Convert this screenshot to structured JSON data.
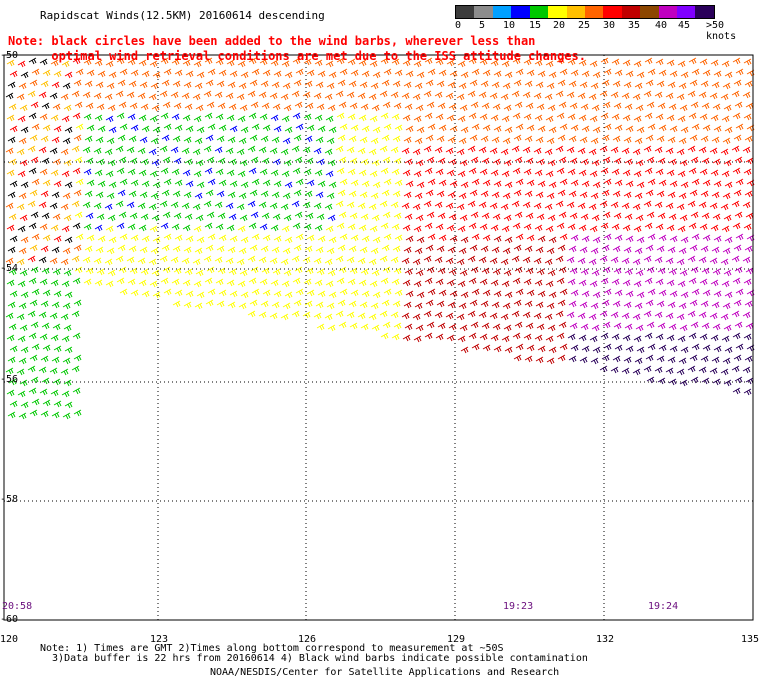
{
  "title": "Rapidscat Winds(12.5KM) 20160614 descending",
  "note_line1": "Note: black circles have been added to the wind barbs, wherever less than",
  "note_line2": "      optimal wind retrieval conditions are met due to the ISS attitude changes.",
  "colorbar": {
    "colors": [
      "#3c3c3c",
      "#8c8c8c",
      "#00a0ff",
      "#0000ff",
      "#00c800",
      "#ffff00",
      "#ffc000",
      "#ff6400",
      "#ff0000",
      "#c00000",
      "#8c4600",
      "#c000c0",
      "#8000ff",
      "#2a005a"
    ],
    "labels": [
      "0",
      "5",
      "10",
      "15",
      "20",
      "25",
      "30",
      "35",
      "40",
      "45",
      ">50 knots"
    ]
  },
  "lat_labels": [
    "-50",
    "-54",
    "-56",
    "-58",
    "-60"
  ],
  "lon_labels": [
    "120",
    "123",
    "126",
    "129",
    "132",
    "135"
  ],
  "times": [
    "20:58",
    "19:23",
    "19:24"
  ],
  "footnote_line1": "Note: 1) Times are GMT 2)Times along bottom correspond to measurement at ~50S",
  "footnote_line2": "  3)Data buffer is 22 hrs from 20160614 4) Black wind barbs indicate possible contamination",
  "credit": "NOAA/NESDIS/Center for Satellite Applications and Research"
}
